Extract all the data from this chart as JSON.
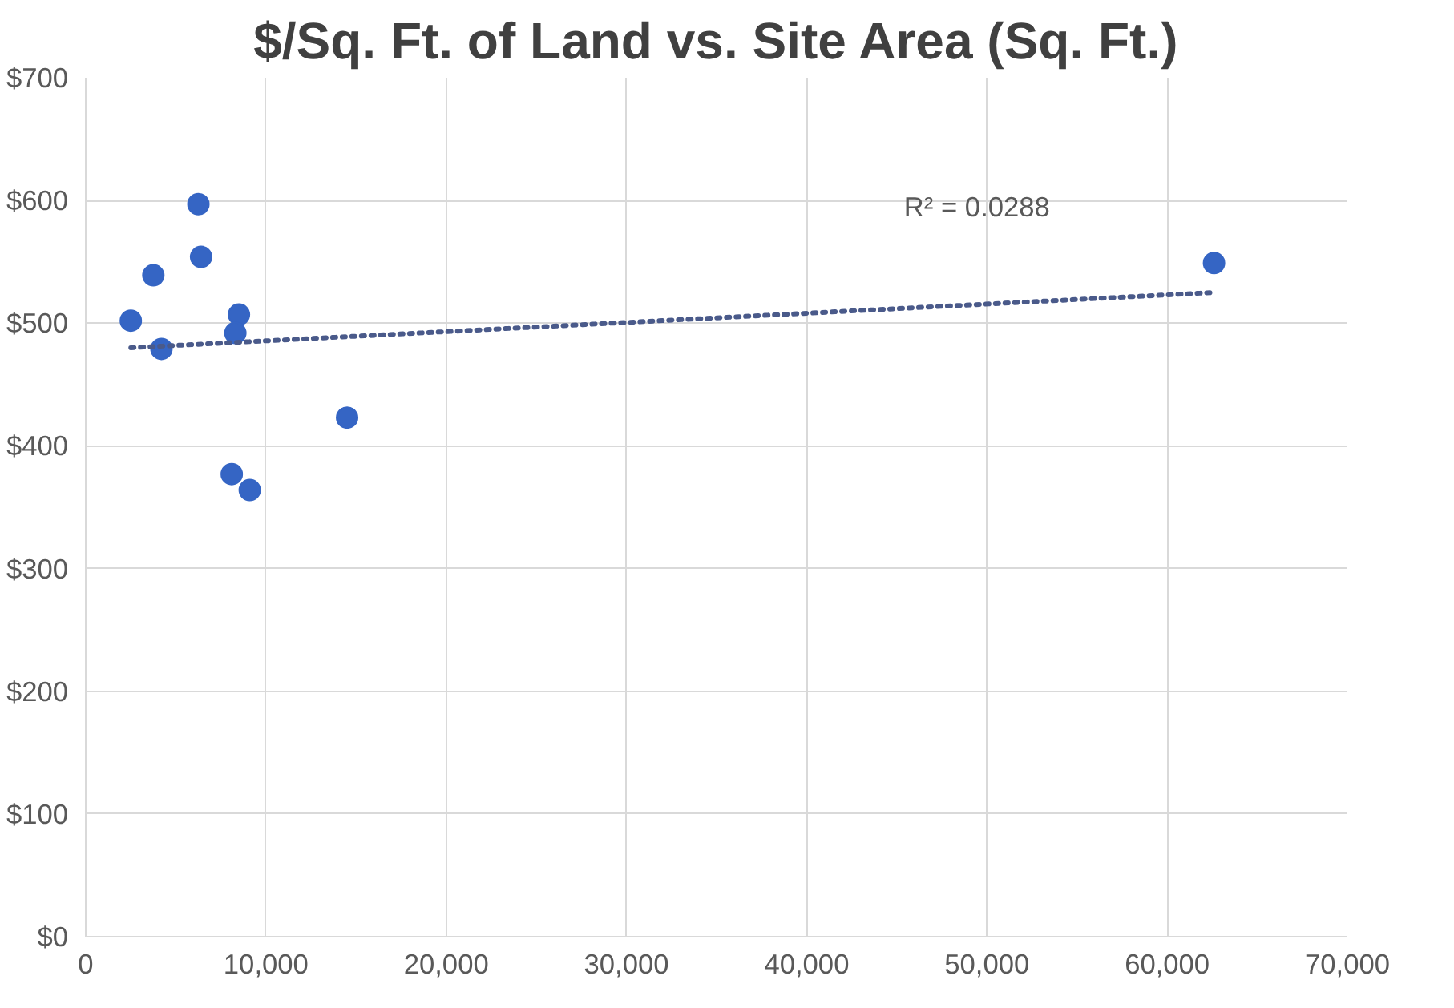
{
  "chart_data": {
    "type": "scatter",
    "title": "$/Sq. Ft. of Land vs. Site Area (Sq. Ft.)",
    "marker": "circle",
    "grid": true,
    "xlim": [
      0,
      70000
    ],
    "xticks": [
      {
        "value": 0,
        "label": "0"
      },
      {
        "value": 10000,
        "label": "10,000"
      },
      {
        "value": 20000,
        "label": "20,000"
      },
      {
        "value": 30000,
        "label": "30,000"
      },
      {
        "value": 40000,
        "label": "40,000"
      },
      {
        "value": 50000,
        "label": "50,000"
      },
      {
        "value": 60000,
        "label": "60,000"
      },
      {
        "value": 70000,
        "label": "70,000"
      }
    ],
    "ylim": [
      0,
      700
    ],
    "yticks": [
      {
        "value": 0,
        "label": "$0"
      },
      {
        "value": 100,
        "label": "$100"
      },
      {
        "value": 200,
        "label": "$200"
      },
      {
        "value": 300,
        "label": "$300"
      },
      {
        "value": 400,
        "label": "$400"
      },
      {
        "value": 500,
        "label": "$500"
      },
      {
        "value": 600,
        "label": "$600"
      },
      {
        "value": 700,
        "label": "$700"
      }
    ],
    "series": [
      {
        "color": "#3565c4",
        "x": [
          2500,
          3750,
          4200,
          6250,
          6400,
          8500,
          8300,
          8100,
          9100,
          14500,
          62600
        ],
        "values": [
          502,
          539,
          479,
          597,
          554,
          507,
          492,
          377,
          364,
          423,
          549
        ]
      },
      {
        "type": "line",
        "color": "#4a5a8a",
        "line_style": "dotted",
        "marker": "none",
        "x": [
          2500,
          62600
        ],
        "values": [
          480,
          525
        ]
      }
    ],
    "annotations": [
      "R² = 0.0288"
    ]
  }
}
